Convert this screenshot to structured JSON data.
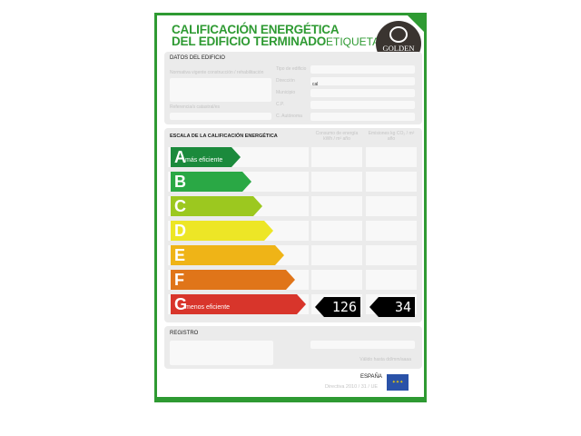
{
  "header": {
    "title_line1": "CALIFICACIÓN ENERGÉTICA",
    "title_line2": "DEL EDIFICIO TERMINADO",
    "label": "ETIQUETA",
    "logo_text": "GOLDEN HOUSE"
  },
  "datos": {
    "title": "DATOS DEL EDIFICIO",
    "normativa": "Normativa vigente construcción / rehabilitación",
    "referencia": "Referencia/s catastral/es",
    "fields": [
      "Tipo de edificio",
      "Dirección",
      "Municipio",
      "C.P.",
      "C. Autónoma"
    ],
    "direccion_value": "cal"
  },
  "escala": {
    "title": "ESCALA DE LA CALIFICACIÓN ENERGÉTICA",
    "col1": "Consumo de energía kWh / m² año",
    "col2": "Emisiones kg CO₂ / m² año",
    "classes": [
      {
        "letter": "A",
        "note": "más eficiente",
        "color": "#1b8a3c"
      },
      {
        "letter": "B",
        "note": "",
        "color": "#2aa845"
      },
      {
        "letter": "C",
        "note": "",
        "color": "#9cc81f"
      },
      {
        "letter": "D",
        "note": "",
        "color": "#ede626"
      },
      {
        "letter": "E",
        "note": "",
        "color": "#efb417"
      },
      {
        "letter": "F",
        "note": "",
        "color": "#e07519"
      },
      {
        "letter": "G",
        "note": "menos eficiente",
        "color": "#d8352b"
      }
    ],
    "rating_class": "G",
    "consumo": "126",
    "emisiones": "34"
  },
  "registro": {
    "title": "REGISTRO",
    "valid": "Válido hasta dd/mm/aaaa"
  },
  "footer": {
    "country": "ESPAÑA",
    "directive": "Directiva 2010 / 31 / UE"
  }
}
